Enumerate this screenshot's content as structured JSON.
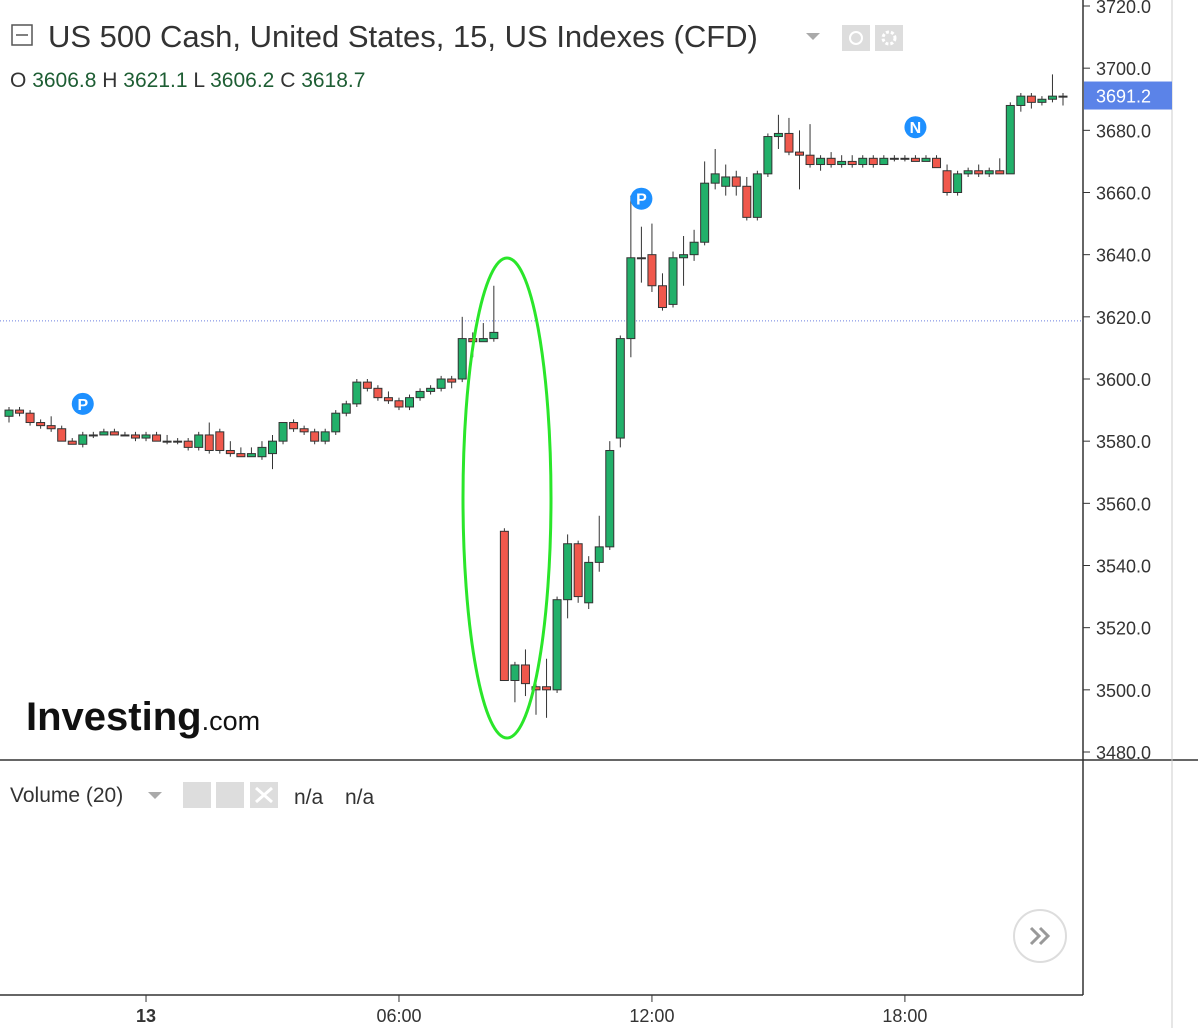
{
  "chart_data": {
    "type": "candlestick",
    "title": "US 500 Cash, United States, 15, US Indexes (CFD)",
    "ohlc_legend": [
      {
        "label": "O",
        "value": 3606.8
      },
      {
        "label": "H",
        "value": 3621.1
      },
      {
        "label": "L",
        "value": 3606.2
      },
      {
        "label": "C",
        "value": 3618.7
      }
    ],
    "last_price": 3691.2,
    "up_color": "#22b06a",
    "down_color": "#f0584c",
    "categories": [
      "20:45",
      "21:00",
      "21:15",
      "21:30",
      "21:45",
      "22:00",
      "22:15",
      "22:30",
      "22:45",
      "23:00",
      "23:15",
      "23:30",
      "23:45",
      "00:00",
      "00:15",
      "00:30",
      "00:45",
      "01:00",
      "01:15",
      "01:30",
      "01:45",
      "02:00",
      "02:15",
      "02:30",
      "02:45",
      "03:00",
      "03:15",
      "03:30",
      "03:45",
      "04:00",
      "04:15",
      "04:30",
      "04:45",
      "05:00",
      "05:15",
      "05:30",
      "05:45",
      "06:00",
      "06:15",
      "06:30",
      "06:45",
      "07:00",
      "07:15",
      "07:30",
      "07:45",
      "08:00",
      "08:15",
      "08:30",
      "08:45",
      "09:00",
      "09:15",
      "09:30",
      "09:45",
      "10:00",
      "10:15",
      "10:30",
      "10:45",
      "11:00",
      "11:15",
      "11:30",
      "11:45",
      "12:00",
      "12:15",
      "12:30",
      "12:45",
      "13:00",
      "13:15",
      "13:30",
      "13:45",
      "14:00",
      "14:15",
      "14:30",
      "14:45",
      "15:00",
      "15:15",
      "15:30",
      "15:45",
      "16:00",
      "16:15",
      "16:30",
      "16:45",
      "17:00",
      "17:15",
      "17:30",
      "17:45",
      "18:00",
      "18:15",
      "18:30",
      "18:45",
      "19:00",
      "19:15",
      "19:30",
      "19:45",
      "20:00",
      "20:15",
      "20:30",
      "20:45",
      "21:00",
      "21:15",
      "21:30",
      "21:45"
    ],
    "open": [
      3588,
      3590,
      3589,
      3586,
      3585,
      3584,
      3580,
      3579,
      3582,
      3582,
      3583,
      3582,
      3582,
      3581,
      3582,
      3580,
      3580,
      3580,
      3578,
      3582,
      3583,
      3577,
      3576,
      3575,
      3575,
      3576,
      3580,
      3586,
      3584,
      3583,
      3580,
      3583,
      3589,
      3592,
      3599,
      3597,
      3594,
      3593,
      3591,
      3594,
      3596,
      3597,
      3600,
      3600,
      3613,
      3612,
      3613,
      3551,
      3503,
      3508,
      3501,
      3501,
      3500,
      3529,
      3547,
      3528,
      3541,
      3546,
      3581,
      3613,
      3639,
      3640,
      3630,
      3624,
      3639,
      3640,
      3644,
      3663,
      3662,
      3665,
      3662,
      3652,
      3666,
      3678,
      3679,
      3673,
      3672,
      3669,
      3671,
      3669,
      3670,
      3669,
      3671,
      3669,
      3671,
      3671,
      3671,
      3670,
      3671,
      3667,
      3660,
      3666,
      3667,
      3666,
      3667,
      3666,
      3688,
      3691,
      3689,
      3690,
      3691
    ],
    "high": [
      3591,
      3591,
      3590,
      3587,
      3588,
      3585,
      3581,
      3583,
      3583,
      3584,
      3584,
      3583,
      3583,
      3583,
      3583,
      3582,
      3581,
      3581,
      3583,
      3586,
      3584,
      3580,
      3578,
      3578,
      3580,
      3582,
      3586,
      3587,
      3585,
      3584,
      3584,
      3590,
      3593,
      3600,
      3600,
      3598,
      3596,
      3594,
      3595,
      3597,
      3598,
      3601,
      3601,
      3620,
      3615,
      3618,
      3630,
      3552,
      3509,
      3513,
      3505,
      3510,
      3530,
      3550,
      3548,
      3543,
      3556,
      3580,
      3614,
      3659,
      3649,
      3650,
      3634,
      3641,
      3646,
      3648,
      3670,
      3674,
      3669,
      3667,
      3665,
      3667,
      3679,
      3685,
      3684,
      3680,
      3682,
      3672,
      3673,
      3672,
      3672,
      3672,
      3672,
      3672,
      3672,
      3672,
      3672,
      3672,
      3672,
      3669,
      3667,
      3668,
      3669,
      3668,
      3671,
      3689,
      3692,
      3692,
      3691,
      3698,
      3692
    ],
    "low": [
      3586,
      3588,
      3585,
      3584,
      3583,
      3580,
      3579,
      3578,
      3581,
      3582,
      3582,
      3582,
      3580,
      3580,
      3580,
      3579,
      3579,
      3577,
      3577,
      3576,
      3576,
      3575,
      3575,
      3575,
      3574,
      3571,
      3579,
      3583,
      3582,
      3579,
      3579,
      3582,
      3588,
      3591,
      3596,
      3593,
      3592,
      3590,
      3590,
      3593,
      3595,
      3596,
      3597,
      3599,
      3607,
      3612,
      3612,
      3503,
      3496,
      3498,
      3492,
      3491,
      3499,
      3523,
      3528,
      3526,
      3538,
      3545,
      3578,
      3607,
      3631,
      3628,
      3622,
      3623,
      3630,
      3638,
      3643,
      3661,
      3659,
      3659,
      3651,
      3651,
      3665,
      3674,
      3672,
      3661,
      3668,
      3667,
      3668,
      3668,
      3668,
      3668,
      3668,
      3669,
      3670,
      3670,
      3670,
      3670,
      3668,
      3659,
      3659,
      3665,
      3665,
      3665,
      3666,
      3666,
      3686,
      3687,
      3688,
      3689,
      3688
    ],
    "close": [
      3590,
      3589,
      3586,
      3585,
      3584,
      3580,
      3579,
      3582,
      3582,
      3583,
      3582,
      3582,
      3581,
      3582,
      3580,
      3580,
      3580,
      3578,
      3582,
      3577,
      3577,
      3576,
      3575,
      3576,
      3578,
      3580,
      3586,
      3584,
      3583,
      3580,
      3583,
      3589,
      3592,
      3599,
      3597,
      3594,
      3593,
      3591,
      3594,
      3596,
      3597,
      3600,
      3599,
      3613,
      3612,
      3613,
      3615,
      3503,
      3508,
      3502,
      3500,
      3500,
      3529,
      3547,
      3530,
      3541,
      3546,
      3577,
      3613,
      3639,
      3639,
      3630,
      3623,
      3639,
      3640,
      3644,
      3663,
      3666,
      3665,
      3662,
      3652,
      3666,
      3678,
      3679,
      3673,
      3672,
      3669,
      3671,
      3669,
      3670,
      3669,
      3671,
      3669,
      3671,
      3671,
      3671,
      3670,
      3671,
      3668,
      3660,
      3666,
      3667,
      3666,
      3667,
      3666,
      3688,
      3691,
      3689,
      3690,
      3691,
      3691
    ],
    "ylim": [
      3480,
      3720
    ],
    "yticks": [
      {
        "value": 3480,
        "label": "3480.0"
      },
      {
        "value": 3500,
        "label": "3500.0"
      },
      {
        "value": 3520,
        "label": "3520.0"
      },
      {
        "value": 3540,
        "label": "3540.0"
      },
      {
        "value": 3560,
        "label": "3560.0"
      },
      {
        "value": 3580,
        "label": "3580.0"
      },
      {
        "value": 3600,
        "label": "3600.0"
      },
      {
        "value": 3620,
        "label": "3620.0"
      },
      {
        "value": 3640,
        "label": "3640.0"
      },
      {
        "value": 3660,
        "label": "3660.0"
      },
      {
        "value": 3680,
        "label": "3680.0"
      },
      {
        "value": 3700,
        "label": "3700.0"
      },
      {
        "value": 3720,
        "label": "3720.0"
      }
    ],
    "xticks": [
      {
        "value": "00:00",
        "label": "13"
      },
      "06:00",
      "12:00",
      "18:00"
    ],
    "events": [
      {
        "label": "P",
        "x": "22:30"
      },
      {
        "label": "P",
        "x": "11:45"
      },
      {
        "label": "N",
        "x": "18:15"
      }
    ],
    "volume_panel": {
      "title": "Volume (20)",
      "values": [
        "n/a",
        "n/a"
      ]
    },
    "logo": {
      "brand": "Investing",
      "suffix": ".com"
    }
  }
}
